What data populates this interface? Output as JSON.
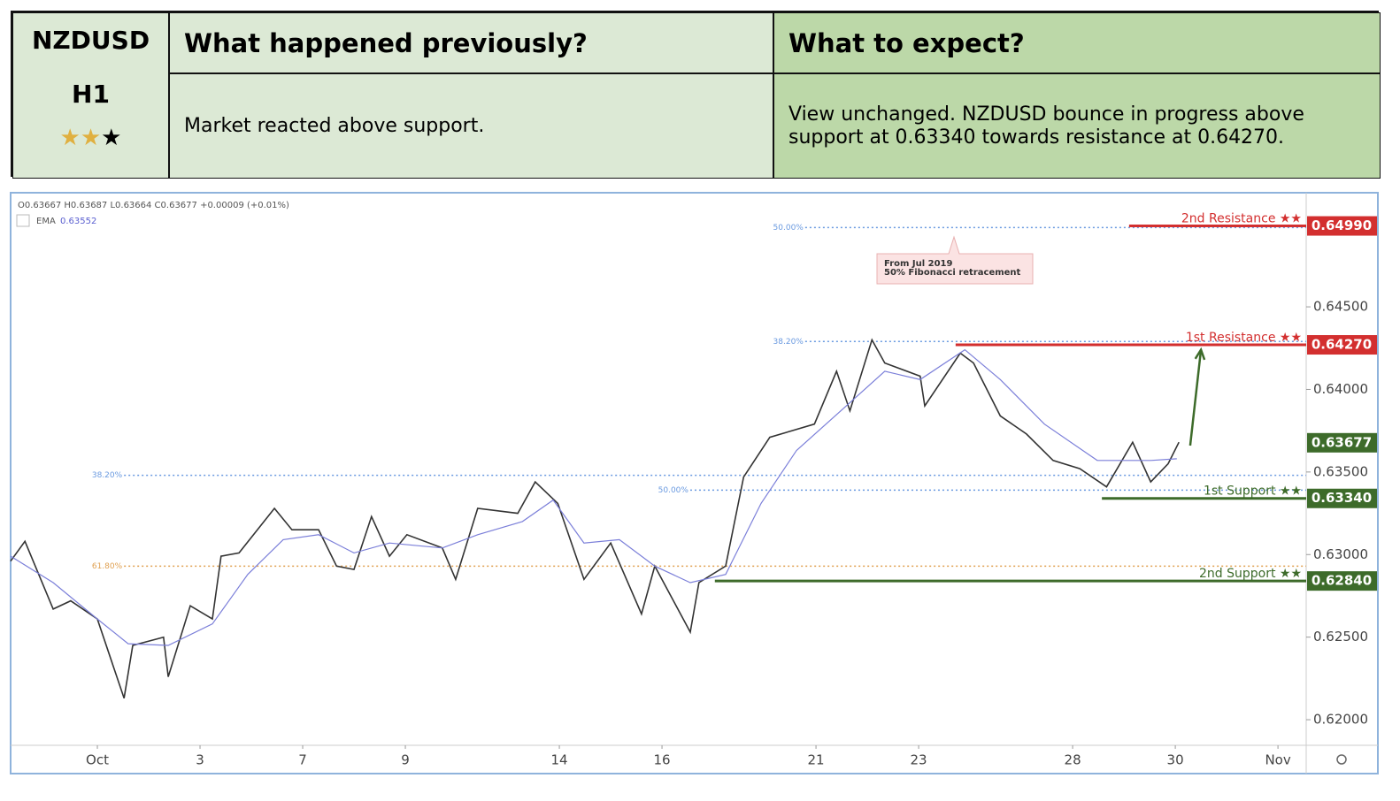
{
  "header": {
    "symbol": "NZDUSD",
    "timeframe": "H1",
    "rating": 2,
    "rating_max": 3,
    "col2_title": "What happened previously?",
    "col3_title": "What to expect?",
    "col2_text": "Market reacted above support.",
    "col3_text": "View unchanged. NZDUSD bounce in progress above support at 0.63340 towards resistance at 0.64270."
  },
  "chart_data": {
    "type": "line",
    "legend": {
      "ohlc": "O0.63667 H0.63687 L0.63664 C0.63677 +0.00009 (+0.01%)",
      "ema_value": "0.63552"
    },
    "xlim": [
      -1.69,
      23.55
    ],
    "ylim": [
      0.61845,
      0.65191
    ],
    "xticks": [
      {
        "value": 0,
        "label": "Oct"
      },
      {
        "value": 2,
        "label": "3"
      },
      {
        "value": 4,
        "label": "7"
      },
      {
        "value": 6,
        "label": "9"
      },
      {
        "value": 9,
        "label": "14"
      },
      {
        "value": 11,
        "label": "16"
      },
      {
        "value": 14,
        "label": "21"
      },
      {
        "value": 16,
        "label": "23"
      },
      {
        "value": 19,
        "label": "28"
      },
      {
        "value": 21,
        "label": "30"
      },
      {
        "value": 23,
        "label": "Nov"
      }
    ],
    "yticks": [
      {
        "value": 0.62,
        "label": "0.62000"
      },
      {
        "value": 0.625,
        "label": "0.62500"
      },
      {
        "value": 0.63,
        "label": "0.63000"
      },
      {
        "value": 0.635,
        "label": "0.63500"
      },
      {
        "value": 0.64,
        "label": "0.64000"
      },
      {
        "value": 0.645,
        "label": "0.64500"
      }
    ],
    "series": [
      {
        "color": "#333333",
        "x": [
          -1.69,
          -1.41,
          -0.86,
          -0.52,
          0,
          0.52,
          0.69,
          1.29,
          1.38,
          1.81,
          2.24,
          2.41,
          2.76,
          3.45,
          3.79,
          4.31,
          4.66,
          5.0,
          5.34,
          5.69,
          6.03,
          6.72,
          6.98,
          7.41,
          8.19,
          8.53,
          8.97,
          9.48,
          10.0,
          10.6,
          10.86,
          11.55,
          11.72,
          12.24,
          12.59,
          13.1,
          13.97,
          14.4,
          14.66,
          15.09,
          15.34,
          16.03,
          16.12,
          16.81,
          17.07,
          17.59,
          18.1,
          18.62,
          19.14,
          19.66,
          20.17,
          20.52,
          20.86,
          21.07
        ],
        "values": [
          0.6296,
          0.6308,
          0.6267,
          0.6272,
          0.6261,
          0.6213,
          0.6245,
          0.625,
          0.6226,
          0.6269,
          0.6261,
          0.6299,
          0.6301,
          0.6328,
          0.6315,
          0.6315,
          0.6293,
          0.6291,
          0.6323,
          0.6299,
          0.6312,
          0.6304,
          0.6285,
          0.6328,
          0.6325,
          0.6344,
          0.6331,
          0.6285,
          0.6307,
          0.6264,
          0.6293,
          0.6253,
          0.6283,
          0.6293,
          0.6347,
          0.6371,
          0.6379,
          0.6411,
          0.6387,
          0.643,
          0.6416,
          0.6408,
          0.639,
          0.6422,
          0.6416,
          0.6384,
          0.6373,
          0.6357,
          0.6352,
          0.6341,
          0.6368,
          0.6344,
          0.6355,
          0.6368
        ]
      },
      {
        "name": "EMA",
        "color": "#7b7fd9",
        "x": [
          -1.69,
          -0.86,
          0,
          0.6,
          1.38,
          2.24,
          2.93,
          3.62,
          4.31,
          5.0,
          5.69,
          6.72,
          7.41,
          8.28,
          8.88,
          9.48,
          10.17,
          10.86,
          11.55,
          12.24,
          12.93,
          13.62,
          14.66,
          15.34,
          16.03,
          16.9,
          17.59,
          18.45,
          19.48,
          20.52,
          21.03
        ],
        "values": [
          0.6299,
          0.6283,
          0.6261,
          0.6246,
          0.6245,
          0.6258,
          0.6288,
          0.6309,
          0.6312,
          0.6301,
          0.6307,
          0.6304,
          0.6312,
          0.632,
          0.6333,
          0.6307,
          0.6309,
          0.6293,
          0.6283,
          0.6288,
          0.6331,
          0.6363,
          0.6392,
          0.6411,
          0.6406,
          0.6424,
          0.6406,
          0.6379,
          0.6357,
          0.6357,
          0.6358
        ]
      }
    ],
    "levels": [
      {
        "name": "2nd Resistance ★★",
        "value": 0.6499,
        "value_label": "0.64990",
        "start": 20.1,
        "color": "#d32f2f"
      },
      {
        "name": "1st Resistance ★★",
        "value": 0.6427,
        "value_label": "0.64270",
        "start": 16.72,
        "color": "#d32f2f"
      },
      {
        "name": "1st Support ★★",
        "value": 0.6334,
        "value_label": "0.63340",
        "start": 19.57,
        "color": "#3d6b2a"
      },
      {
        "name": "2nd Support ★★",
        "value": 0.6284,
        "value_label": "0.62840",
        "start": 12.03,
        "color": "#3d6b2a"
      }
    ],
    "last": {
      "value": 0.63677,
      "label": "0.63677",
      "color": "#3d6b2a"
    },
    "fibs": [
      {
        "label": "50.00%",
        "value": 0.6498,
        "start": 13.79,
        "color": "#6a9ae0"
      },
      {
        "label": "38.20%",
        "value": 0.6429,
        "start": 13.79,
        "color": "#6a9ae0"
      },
      {
        "label": "38.20%",
        "value": 0.6348,
        "start": 0.52,
        "color": "#6a9ae0"
      },
      {
        "label": "50.00%",
        "value": 0.6339,
        "start": 11.55,
        "color": "#6a9ae0"
      },
      {
        "label": "61.80%",
        "value": 0.6293,
        "start": 0.52,
        "color": "#e0a050"
      }
    ],
    "arrow": {
      "x": [
        21.29,
        21.5
      ],
      "values": [
        0.6366,
        0.6424
      ],
      "color": "#3d6b2a"
    },
    "annotation": [
      "From Jul 2019",
      "50% Fibonacci retracement"
    ]
  }
}
